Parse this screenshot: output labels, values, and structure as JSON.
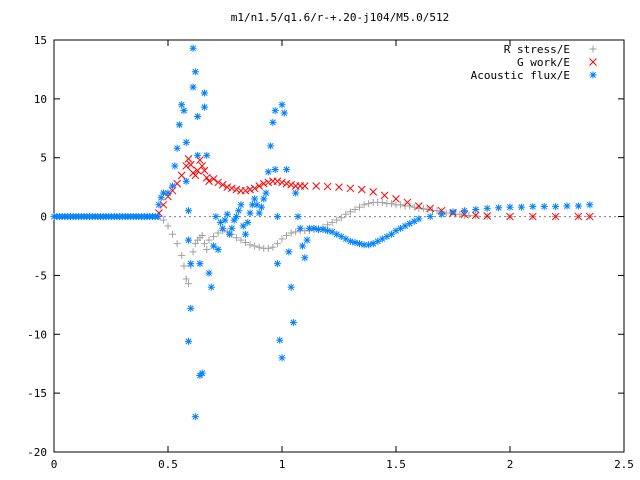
{
  "chart_data": {
    "type": "scatter",
    "title": "m1/n1.5/q1.6/r-+.20-j104/M5.0/512",
    "xlabel": "",
    "ylabel": "",
    "xlim": [
      0,
      2.5
    ],
    "ylim": [
      -20,
      15
    ],
    "x_ticks": [
      0,
      0.5,
      1,
      1.5,
      2,
      2.5
    ],
    "x_tick_labels": [
      "0",
      "0.5",
      "1",
      "1.5",
      "2",
      "2.5"
    ],
    "y_ticks": [
      -20,
      -15,
      -10,
      -5,
      0,
      5,
      10,
      15
    ],
    "y_tick_labels": [
      "-20",
      "-15",
      "-10",
      "-5",
      "0",
      "5",
      "10",
      "15"
    ],
    "grid": false,
    "legend_position": "top-right",
    "series": [
      {
        "name": "R stress/E",
        "marker": "plus",
        "color": "#a0a0a0",
        "points": [
          [
            0.46,
            0.0
          ],
          [
            0.48,
            -0.3
          ],
          [
            0.5,
            -0.8
          ],
          [
            0.52,
            -1.5
          ],
          [
            0.54,
            -2.3
          ],
          [
            0.56,
            -3.3
          ],
          [
            0.57,
            -4.2
          ],
          [
            0.58,
            -5.3
          ],
          [
            0.59,
            -5.7
          ],
          [
            0.6,
            -4.2
          ],
          [
            0.61,
            -3.0
          ],
          [
            0.62,
            -2.3
          ],
          [
            0.63,
            -2.0
          ],
          [
            0.64,
            -1.8
          ],
          [
            0.65,
            -1.6
          ],
          [
            0.66,
            -2.3
          ],
          [
            0.67,
            -2.8
          ],
          [
            0.68,
            -2.0
          ],
          [
            0.7,
            -1.7
          ],
          [
            0.72,
            -1.4
          ],
          [
            0.74,
            -1.2
          ],
          [
            0.76,
            -1.3
          ],
          [
            0.78,
            -1.5
          ],
          [
            0.8,
            -1.8
          ],
          [
            0.82,
            -2.0
          ],
          [
            0.84,
            -2.2
          ],
          [
            0.86,
            -2.4
          ],
          [
            0.88,
            -2.5
          ],
          [
            0.9,
            -2.6
          ],
          [
            0.92,
            -2.7
          ],
          [
            0.94,
            -2.7
          ],
          [
            0.96,
            -2.6
          ],
          [
            0.98,
            -2.3
          ],
          [
            1.0,
            -1.9
          ],
          [
            1.02,
            -1.6
          ],
          [
            1.04,
            -1.4
          ],
          [
            1.06,
            -1.3
          ],
          [
            1.08,
            -1.2
          ],
          [
            1.1,
            -1.2
          ],
          [
            1.12,
            -1.2
          ],
          [
            1.14,
            -1.1
          ],
          [
            1.16,
            -1.0
          ],
          [
            1.18,
            -0.9
          ],
          [
            1.2,
            -0.7
          ],
          [
            1.22,
            -0.5
          ],
          [
            1.24,
            -0.3
          ],
          [
            1.26,
            -0.1
          ],
          [
            1.28,
            0.2
          ],
          [
            1.3,
            0.4
          ],
          [
            1.32,
            0.6
          ],
          [
            1.34,
            0.8
          ],
          [
            1.36,
            1.0
          ],
          [
            1.38,
            1.1
          ],
          [
            1.4,
            1.2
          ],
          [
            1.42,
            1.2
          ],
          [
            1.44,
            1.2
          ],
          [
            1.46,
            1.1
          ],
          [
            1.48,
            1.1
          ],
          [
            1.5,
            1.0
          ],
          [
            1.52,
            1.0
          ],
          [
            1.54,
            0.9
          ],
          [
            1.56,
            0.9
          ],
          [
            1.58,
            0.8
          ],
          [
            1.6,
            0.7
          ],
          [
            1.62,
            0.7
          ],
          [
            1.64,
            0.6
          ],
          [
            1.66,
            0.5
          ],
          [
            1.68,
            0.5
          ],
          [
            1.7,
            0.4
          ],
          [
            1.72,
            0.3
          ],
          [
            1.74,
            0.3
          ],
          [
            1.76,
            0.2
          ],
          [
            1.78,
            0.2
          ],
          [
            1.8,
            0.1
          ],
          [
            1.82,
            0.1
          ],
          [
            1.85,
            0.05
          ],
          [
            1.9,
            0.02
          ],
          [
            2.0,
            0.0
          ],
          [
            2.1,
            0.0
          ],
          [
            2.2,
            0.0
          ],
          [
            2.3,
            0.0
          ],
          [
            2.35,
            0.0
          ]
        ]
      },
      {
        "name": "G work/E",
        "marker": "cross",
        "color": "#ff0000",
        "points": [
          [
            0.46,
            0.3
          ],
          [
            0.48,
            1.0
          ],
          [
            0.5,
            1.7
          ],
          [
            0.52,
            2.2
          ],
          [
            0.54,
            2.8
          ],
          [
            0.56,
            3.5
          ],
          [
            0.58,
            4.3
          ],
          [
            0.59,
            4.9
          ],
          [
            0.6,
            4.4
          ],
          [
            0.61,
            3.7
          ],
          [
            0.62,
            3.5
          ],
          [
            0.63,
            3.9
          ],
          [
            0.64,
            4.8
          ],
          [
            0.65,
            4.3
          ],
          [
            0.66,
            3.9
          ],
          [
            0.67,
            3.3
          ],
          [
            0.68,
            3.0
          ],
          [
            0.7,
            3.2
          ],
          [
            0.72,
            2.9
          ],
          [
            0.74,
            2.7
          ],
          [
            0.76,
            2.5
          ],
          [
            0.78,
            2.4
          ],
          [
            0.8,
            2.3
          ],
          [
            0.82,
            2.2
          ],
          [
            0.84,
            2.2
          ],
          [
            0.86,
            2.3
          ],
          [
            0.88,
            2.4
          ],
          [
            0.9,
            2.6
          ],
          [
            0.92,
            2.8
          ],
          [
            0.94,
            2.9
          ],
          [
            0.96,
            3.0
          ],
          [
            0.98,
            3.0
          ],
          [
            1.0,
            2.9
          ],
          [
            1.02,
            2.8
          ],
          [
            1.04,
            2.7
          ],
          [
            1.06,
            2.6
          ],
          [
            1.08,
            2.6
          ],
          [
            1.1,
            2.6
          ],
          [
            1.15,
            2.6
          ],
          [
            1.2,
            2.55
          ],
          [
            1.25,
            2.5
          ],
          [
            1.3,
            2.4
          ],
          [
            1.35,
            2.3
          ],
          [
            1.4,
            2.1
          ],
          [
            1.45,
            1.8
          ],
          [
            1.5,
            1.5
          ],
          [
            1.55,
            1.2
          ],
          [
            1.6,
            0.9
          ],
          [
            1.65,
            0.7
          ],
          [
            1.7,
            0.5
          ],
          [
            1.75,
            0.3
          ],
          [
            1.8,
            0.2
          ],
          [
            1.85,
            0.1
          ],
          [
            1.9,
            0.05
          ],
          [
            2.0,
            0.0
          ],
          [
            2.1,
            0.0
          ],
          [
            2.2,
            0.0
          ],
          [
            2.3,
            0.0
          ],
          [
            2.35,
            0.0
          ]
        ]
      },
      {
        "name": "Acoustic flux/E",
        "marker": "star",
        "color": "#0080ff",
        "points": [
          [
            0.46,
            1.0
          ],
          [
            0.47,
            1.6
          ],
          [
            0.48,
            2.0
          ],
          [
            0.5,
            2.0
          ],
          [
            0.52,
            2.6
          ],
          [
            0.53,
            4.3
          ],
          [
            0.54,
            5.8
          ],
          [
            0.55,
            7.8
          ],
          [
            0.56,
            9.5
          ],
          [
            0.57,
            9.0
          ],
          [
            0.58,
            6.3
          ],
          [
            0.58,
            3.0
          ],
          [
            0.59,
            0.5
          ],
          [
            0.59,
            -2.0
          ],
          [
            0.6,
            -4.0
          ],
          [
            0.6,
            -7.8
          ],
          [
            0.59,
            -10.6
          ],
          [
            0.61,
            11.0
          ],
          [
            0.61,
            14.3
          ],
          [
            0.62,
            12.3
          ],
          [
            0.63,
            8.5
          ],
          [
            0.63,
            5.2
          ],
          [
            0.64,
            -4.0
          ],
          [
            0.64,
            -13.5
          ],
          [
            0.65,
            -13.3
          ],
          [
            0.66,
            10.5
          ],
          [
            0.66,
            9.3
          ],
          [
            0.67,
            5.2
          ],
          [
            0.62,
            -17.0
          ],
          [
            0.68,
            -4.8
          ],
          [
            0.69,
            -6.0
          ],
          [
            0.7,
            -2.5
          ],
          [
            0.71,
            0.0
          ],
          [
            0.72,
            -2.8
          ],
          [
            0.73,
            -0.5
          ],
          [
            0.74,
            -1.0
          ],
          [
            0.75,
            -0.3
          ],
          [
            0.76,
            0.2
          ],
          [
            0.77,
            -1.5
          ],
          [
            0.78,
            -1.0
          ],
          [
            0.79,
            -0.3
          ],
          [
            0.8,
            0.0
          ],
          [
            0.81,
            0.5
          ],
          [
            0.82,
            1.0
          ],
          [
            0.83,
            -0.8
          ],
          [
            0.84,
            -1.5
          ],
          [
            0.85,
            -0.5
          ],
          [
            0.86,
            0.3
          ],
          [
            0.87,
            1.0
          ],
          [
            0.88,
            1.5
          ],
          [
            0.89,
            1.0
          ],
          [
            0.9,
            0.3
          ],
          [
            0.91,
            0.8
          ],
          [
            0.92,
            1.5
          ],
          [
            0.93,
            2.0
          ],
          [
            0.94,
            3.8
          ],
          [
            0.95,
            6.0
          ],
          [
            0.96,
            8.0
          ],
          [
            0.97,
            9.0
          ],
          [
            0.97,
            4.0
          ],
          [
            0.98,
            0.0
          ],
          [
            0.98,
            -4.0
          ],
          [
            0.99,
            -10.5
          ],
          [
            1.0,
            -12.0
          ],
          [
            1.0,
            9.5
          ],
          [
            1.01,
            8.8
          ],
          [
            1.02,
            4.0
          ],
          [
            1.03,
            -3.0
          ],
          [
            1.04,
            -6.0
          ],
          [
            1.05,
            -9.0
          ],
          [
            1.06,
            2.0
          ],
          [
            1.07,
            0.0
          ],
          [
            1.08,
            -1.0
          ],
          [
            1.09,
            -2.5
          ],
          [
            1.1,
            -3.5
          ],
          [
            1.11,
            -2.0
          ],
          [
            1.12,
            -1.0
          ],
          [
            1.14,
            -1.0
          ],
          [
            1.16,
            -1.1
          ],
          [
            1.18,
            -1.1
          ],
          [
            1.2,
            -1.2
          ],
          [
            1.22,
            -1.3
          ],
          [
            1.24,
            -1.5
          ],
          [
            1.26,
            -1.7
          ],
          [
            1.28,
            -1.9
          ],
          [
            1.3,
            -2.1
          ],
          [
            1.32,
            -2.2
          ],
          [
            1.34,
            -2.3
          ],
          [
            1.36,
            -2.4
          ],
          [
            1.38,
            -2.4
          ],
          [
            1.4,
            -2.3
          ],
          [
            1.42,
            -2.1
          ],
          [
            1.44,
            -1.9
          ],
          [
            1.46,
            -1.7
          ],
          [
            1.48,
            -1.5
          ],
          [
            1.5,
            -1.2
          ],
          [
            1.52,
            -1.0
          ],
          [
            1.54,
            -0.8
          ],
          [
            1.56,
            -0.6
          ],
          [
            1.58,
            -0.4
          ],
          [
            1.6,
            -0.2
          ],
          [
            1.65,
            0.0
          ],
          [
            1.7,
            0.2
          ],
          [
            1.75,
            0.4
          ],
          [
            1.8,
            0.5
          ],
          [
            1.85,
            0.6
          ],
          [
            1.9,
            0.7
          ],
          [
            1.95,
            0.75
          ],
          [
            2.0,
            0.8
          ],
          [
            2.05,
            0.8
          ],
          [
            2.1,
            0.85
          ],
          [
            2.15,
            0.85
          ],
          [
            2.2,
            0.85
          ],
          [
            2.25,
            0.9
          ],
          [
            2.3,
            0.9
          ],
          [
            2.35,
            1.0
          ]
        ]
      }
    ]
  }
}
